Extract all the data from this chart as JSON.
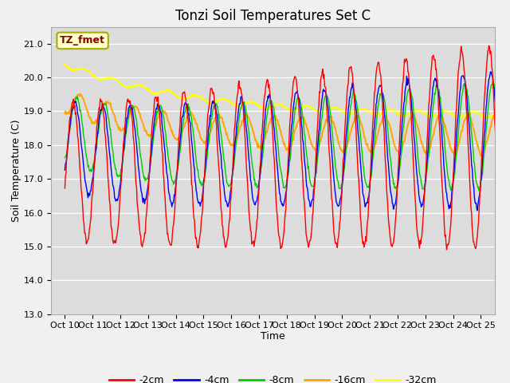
{
  "title": "Tonzi Soil Temperatures Set C",
  "xlabel": "Time",
  "ylabel": "Soil Temperature (C)",
  "annotation": "TZ_fmet",
  "ylim": [
    13.0,
    21.5
  ],
  "yticks": [
    13.0,
    14.0,
    15.0,
    16.0,
    17.0,
    18.0,
    19.0,
    20.0,
    21.0
  ],
  "xlim": [
    9.5,
    25.5
  ],
  "colors": {
    "m2cm": "#ff0000",
    "m4cm": "#0000ff",
    "m8cm": "#00cc00",
    "m16cm": "#ffa500",
    "m32cm": "#ffff00"
  },
  "legend_labels": [
    "-2cm",
    "-4cm",
    "-8cm",
    "-16cm",
    "-32cm"
  ],
  "fig_bg": "#f0f0f0",
  "ax_bg": "#dcdcdc",
  "grid_color": "#ffffff",
  "ann_fg": "#8b0000",
  "ann_bg": "#ffffcc",
  "ann_edge": "#aaaa00",
  "title_fontsize": 12,
  "tick_fontsize": 8,
  "ylabel_fontsize": 9,
  "xlabel_fontsize": 9,
  "legend_fontsize": 9
}
